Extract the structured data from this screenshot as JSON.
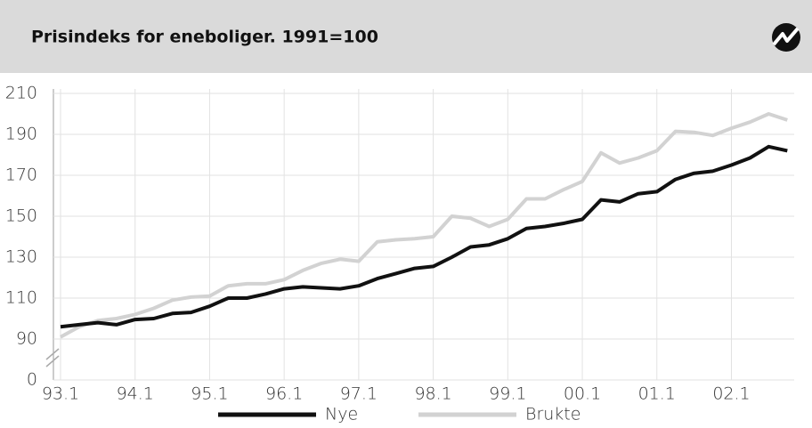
{
  "chart_data": {
    "type": "line",
    "title": "Prisindeks for eneboliger.  1991=100",
    "categories": [
      "93.1",
      null,
      null,
      null,
      "94.1",
      null,
      null,
      null,
      "95.1",
      null,
      null,
      null,
      "96.1",
      null,
      null,
      null,
      "97.1",
      null,
      null,
      null,
      "98.1",
      null,
      null,
      null,
      "99.1",
      null,
      null,
      null,
      "00.1",
      null,
      null,
      null,
      "01.1",
      null,
      null,
      null,
      "02.1",
      null,
      null,
      null
    ],
    "series": [
      {
        "name": "Nye",
        "color": "#111111",
        "values": [
          96,
          97,
          98,
          97,
          99.5,
          100,
          102.5,
          103,
          106,
          110,
          110,
          112,
          114.5,
          115.5,
          115,
          114.5,
          116,
          119.5,
          122,
          124.5,
          125.5,
          130,
          135,
          136,
          139,
          144,
          145,
          146.5,
          148.5,
          158,
          157,
          161,
          162,
          168,
          171,
          172,
          175,
          178.5,
          184,
          182
        ]
      },
      {
        "name": "Brukte",
        "color": "#d2d2d2",
        "values": [
          91,
          96,
          99,
          100,
          102,
          105,
          109,
          110.5,
          111,
          116,
          117,
          117,
          119,
          123.5,
          127,
          129,
          128,
          137.5,
          138.5,
          139,
          140,
          150,
          149,
          145,
          148.5,
          158.5,
          158.5,
          163,
          167,
          181,
          176,
          178.5,
          182,
          191.5,
          191,
          189.5,
          193,
          196,
          200,
          197
        ]
      }
    ],
    "ylim": [
      0,
      210
    ],
    "yticks": [
      0,
      90,
      110,
      130,
      150,
      170,
      190,
      210
    ],
    "grid": true
  }
}
